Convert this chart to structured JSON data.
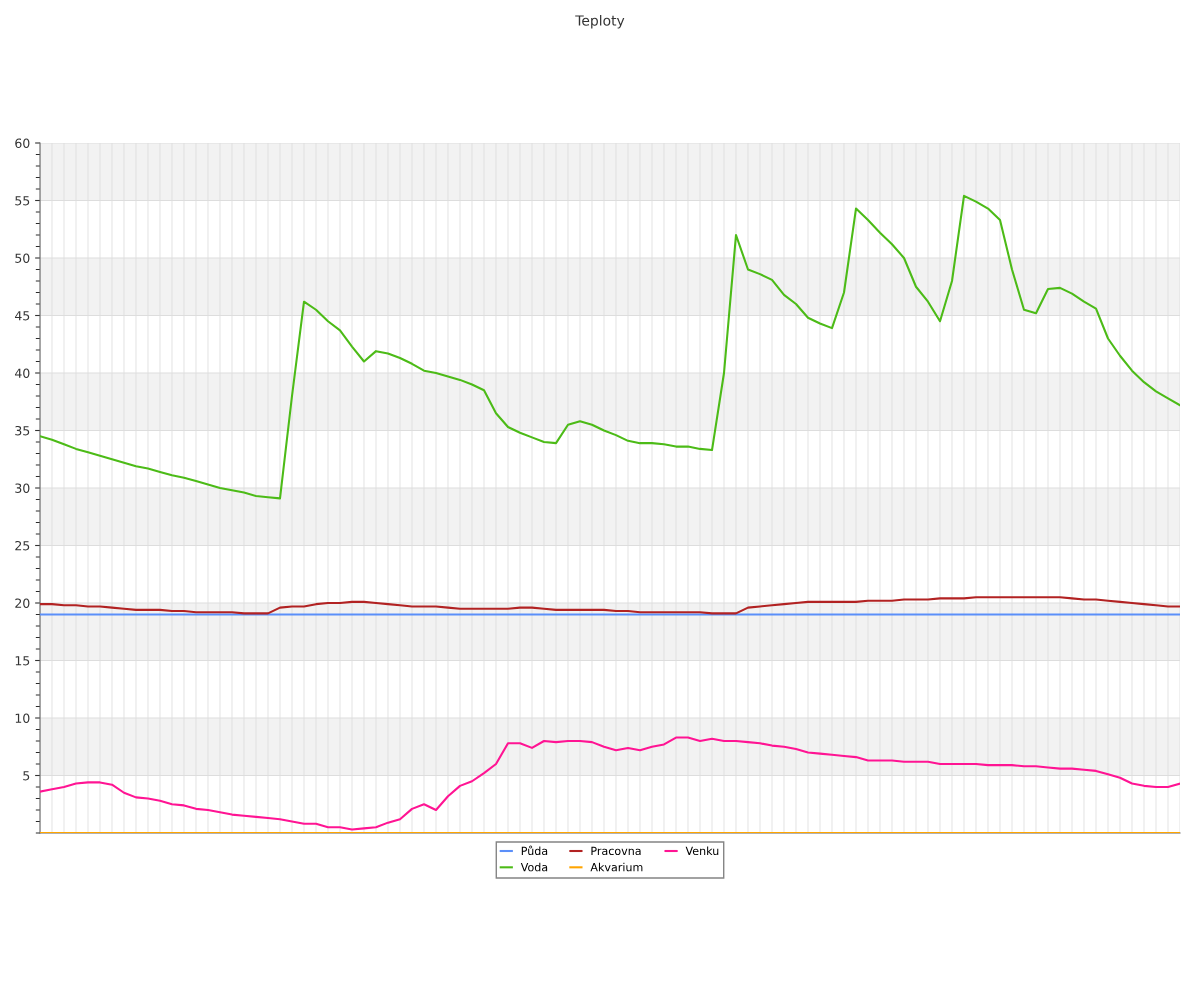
{
  "chart_data": {
    "type": "line",
    "title": "Teploty",
    "categories": [
      null,
      null,
      null,
      null,
      null,
      null,
      null,
      null,
      null,
      null,
      null,
      null,
      null,
      null,
      null,
      null,
      null,
      null,
      null,
      null,
      null,
      null,
      null,
      null,
      null,
      null,
      null,
      null,
      null,
      null,
      null,
      null,
      null,
      null,
      null,
      null,
      null,
      null,
      null,
      null,
      null,
      null,
      null,
      null,
      null,
      null,
      null,
      null,
      null,
      null,
      null,
      null,
      null,
      null,
      null,
      null,
      null,
      null,
      null,
      null,
      null,
      null,
      null,
      null,
      null,
      null,
      null,
      null,
      null,
      null,
      null,
      null,
      null,
      null,
      null,
      null,
      null,
      null,
      null,
      null,
      null,
      null,
      null,
      null,
      null,
      null,
      null,
      null,
      null,
      null,
      null,
      null,
      null,
      null,
      null,
      null
    ],
    "series": [
      {
        "name": "Půda",
        "color": "#5b8ff9",
        "values": [
          19,
          19,
          19,
          19,
          19,
          19,
          19,
          19,
          19,
          19,
          19,
          19,
          19,
          19,
          19,
          19,
          19,
          19,
          19,
          19,
          19,
          19,
          19,
          19,
          19,
          19,
          19,
          19,
          19,
          19,
          19,
          19,
          19,
          19,
          19,
          19,
          19,
          19,
          19,
          19,
          19,
          19,
          19,
          19,
          19,
          19,
          19,
          19,
          19,
          19,
          19,
          19,
          19,
          19,
          19,
          19,
          19,
          19,
          19,
          19,
          19,
          19,
          19,
          19,
          19,
          19,
          19,
          19,
          19,
          19,
          19,
          19,
          19,
          19,
          19,
          19,
          19,
          19,
          19,
          19,
          19,
          19,
          19,
          19,
          19,
          19,
          19,
          19,
          19,
          19,
          19,
          19,
          19,
          19,
          19,
          19
        ]
      },
      {
        "name": "Voda",
        "color": "#4cbb17",
        "values": [
          34.5,
          34.2,
          33.8,
          33.4,
          33.1,
          32.8,
          32.5,
          32.2,
          31.9,
          31.7,
          31.4,
          31.1,
          30.9,
          30.6,
          30.3,
          30.0,
          29.8,
          29.6,
          29.3,
          29.2,
          29.1,
          38,
          46.2,
          45.5,
          44.5,
          43.7,
          42.3,
          41.0,
          41.9,
          41.7,
          41.3,
          40.8,
          40.2,
          40.0,
          39.7,
          39.4,
          39.0,
          38.5,
          36.5,
          35.3,
          34.8,
          34.4,
          34.0,
          33.9,
          35.5,
          35.8,
          35.5,
          35.0,
          34.6,
          34.1,
          33.9,
          33.9,
          33.8,
          33.6,
          33.6,
          33.4,
          33.3,
          40,
          52,
          49,
          48.6,
          48.1,
          46.8,
          46.0,
          44.8,
          44.3,
          43.9,
          47,
          54.3,
          53.3,
          52.2,
          51.2,
          50.0,
          47.5,
          46.2,
          44.5,
          48,
          55.4,
          54.9,
          54.3,
          53.3,
          49,
          45.5,
          45.2,
          47.3,
          47.4,
          46.9,
          46.2,
          45.6,
          43,
          41.5,
          40.2,
          39.2,
          38.4,
          37.8,
          37.2
        ]
      },
      {
        "name": "Pracovna",
        "color": "#b22222",
        "values": [
          19.9,
          19.9,
          19.8,
          19.8,
          19.7,
          19.7,
          19.6,
          19.5,
          19.4,
          19.4,
          19.4,
          19.3,
          19.3,
          19.2,
          19.2,
          19.2,
          19.2,
          19.1,
          19.1,
          19.1,
          19.6,
          19.7,
          19.7,
          19.9,
          20.0,
          20.0,
          20.1,
          20.1,
          20.0,
          19.9,
          19.8,
          19.7,
          19.7,
          19.7,
          19.6,
          19.5,
          19.5,
          19.5,
          19.5,
          19.5,
          19.6,
          19.6,
          19.5,
          19.4,
          19.4,
          19.4,
          19.4,
          19.4,
          19.3,
          19.3,
          19.2,
          19.2,
          19.2,
          19.2,
          19.2,
          19.2,
          19.1,
          19.1,
          19.1,
          19.6,
          19.7,
          19.8,
          19.9,
          20.0,
          20.1,
          20.1,
          20.1,
          20.1,
          20.1,
          20.2,
          20.2,
          20.2,
          20.3,
          20.3,
          20.3,
          20.4,
          20.4,
          20.4,
          20.5,
          20.5,
          20.5,
          20.5,
          20.5,
          20.5,
          20.5,
          20.5,
          20.4,
          20.3,
          20.3,
          20.2,
          20.1,
          20.0,
          19.9,
          19.8,
          19.7,
          19.7
        ]
      },
      {
        "name": "Akvarium",
        "color": "#ffa500",
        "values": [
          0,
          0,
          0,
          0,
          0,
          0,
          0,
          0,
          0,
          0,
          0,
          0,
          0,
          0,
          0,
          0,
          0,
          0,
          0,
          0,
          0,
          0,
          0,
          0,
          0,
          0,
          0,
          0,
          0,
          0,
          0,
          0,
          0,
          0,
          0,
          0,
          0,
          0,
          0,
          0,
          0,
          0,
          0,
          0,
          0,
          0,
          0,
          0,
          0,
          0,
          0,
          0,
          0,
          0,
          0,
          0,
          0,
          0,
          0,
          0,
          0,
          0,
          0,
          0,
          0,
          0,
          0,
          0,
          0,
          0,
          0,
          0,
          0,
          0,
          0,
          0,
          0,
          0,
          0,
          0,
          0,
          0,
          0,
          0,
          0,
          0,
          0,
          0,
          0,
          0,
          0,
          0,
          0,
          0,
          0,
          0
        ]
      },
      {
        "name": "Venku",
        "color": "#ff1493",
        "values": [
          3.6,
          3.8,
          4.0,
          4.3,
          4.4,
          4.4,
          4.2,
          3.5,
          3.1,
          3.0,
          2.8,
          2.5,
          2.4,
          2.1,
          2.0,
          1.8,
          1.6,
          1.5,
          1.4,
          1.3,
          1.2,
          1.0,
          0.8,
          0.8,
          0.5,
          0.5,
          0.3,
          0.4,
          0.5,
          0.9,
          1.2,
          2.1,
          2.5,
          2.0,
          3.2,
          4.1,
          4.5,
          5.2,
          6.0,
          7.8,
          7.8,
          7.4,
          8.0,
          7.9,
          8.0,
          8.0,
          7.9,
          7.5,
          7.2,
          7.4,
          7.2,
          7.5,
          7.7,
          8.3,
          8.3,
          8.0,
          8.2,
          8.0,
          8.0,
          7.9,
          7.8,
          7.6,
          7.5,
          7.3,
          7.0,
          6.9,
          6.8,
          6.7,
          6.6,
          6.3,
          6.3,
          6.3,
          6.2,
          6.2,
          6.2,
          6.0,
          6.0,
          6.0,
          6.0,
          5.9,
          5.9,
          5.9,
          5.8,
          5.8,
          5.7,
          5.6,
          5.6,
          5.5,
          5.4,
          5.1,
          4.8,
          4.3,
          4.1,
          4.0,
          4.0,
          4.3
        ]
      }
    ],
    "ylim": [
      0,
      60
    ],
    "yticks": [
      5,
      10,
      15,
      20,
      25,
      30,
      35,
      40,
      45,
      50,
      55,
      60
    ],
    "grid": true,
    "legend": "bottom",
    "marker": "none",
    "line_style": "solid"
  }
}
